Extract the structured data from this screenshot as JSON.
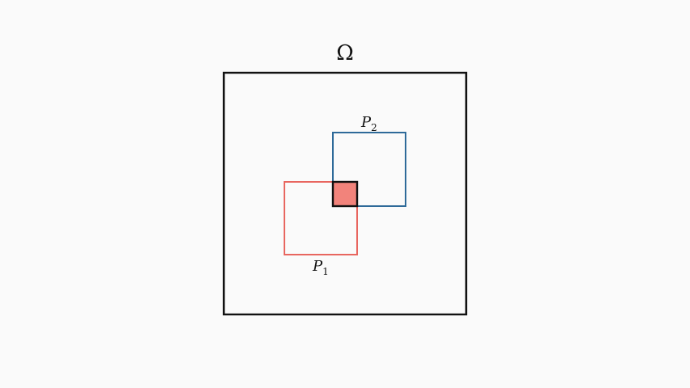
{
  "domain_label": "Ω",
  "patches": [
    {
      "name": "P",
      "subscript": "1",
      "color": "#e8665f"
    },
    {
      "name": "P",
      "subscript": "2",
      "color": "#2e6a99"
    }
  ],
  "overlap": {
    "fill": "#f2837b",
    "stroke": "#111111"
  },
  "colors": {
    "background": "#fafafa",
    "domain_stroke": "#111111"
  }
}
